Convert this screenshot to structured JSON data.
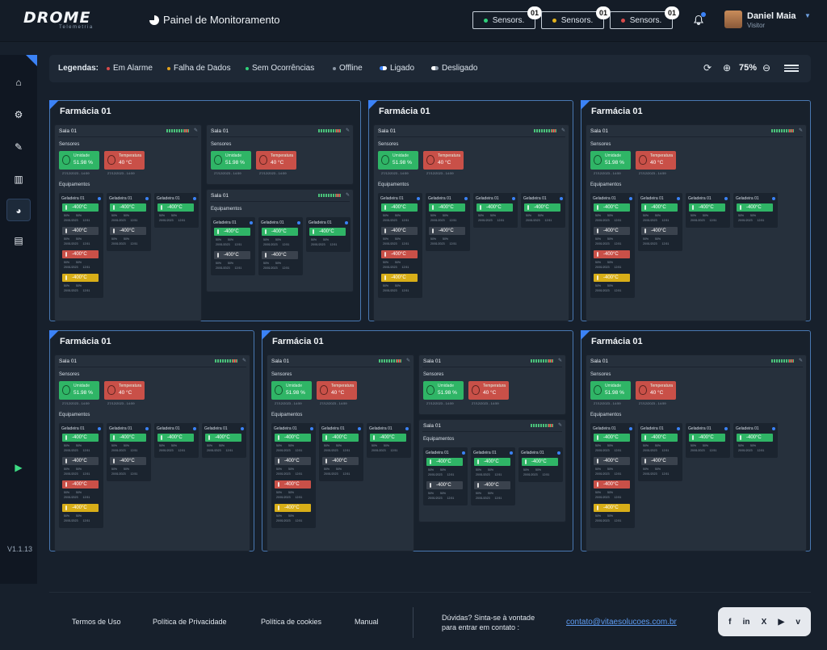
{
  "header": {
    "logo": "DROME",
    "logo_sub": "Telemetria",
    "title": "Painel de Monitoramento",
    "sensor_buttons": [
      {
        "label": "Sensors.",
        "count": "01",
        "color": "#2fd27a"
      },
      {
        "label": "Sensors.",
        "count": "01",
        "color": "#e3b21c"
      },
      {
        "label": "Sensors.",
        "count": "01",
        "color": "#d84a4a"
      }
    ],
    "user": {
      "name": "Daniel Maia",
      "role": "Visitor"
    }
  },
  "sidebar": {
    "items": [
      "home-icon",
      "robot-icon",
      "checklist-icon",
      "bar-chart-icon",
      "pie-chart-icon",
      "document-icon"
    ],
    "stores": [
      "apple-icon",
      "google-play-icon"
    ],
    "version": "V1.1.13"
  },
  "legend": {
    "title": "Legendas:",
    "items": [
      {
        "label": "Em Alarme",
        "color": "#d84a4a",
        "kind": "dot"
      },
      {
        "label": "Falha de Dados",
        "color": "#e3a21c",
        "kind": "dot"
      },
      {
        "label": "Sem Ocorrências",
        "color": "#2fd27a",
        "kind": "dot"
      },
      {
        "label": "Offline",
        "color": "#8b97a5",
        "kind": "dot"
      },
      {
        "label": "Ligado",
        "color": "#ffffff",
        "kind": "toggle"
      },
      {
        "label": "Desligado",
        "color": "#ffffff",
        "kind": "toggle"
      }
    ],
    "zoom": "75%"
  },
  "labels": {
    "pharmacy": "Farmácia 01",
    "room": "Sala 01",
    "sensors": "Sensores",
    "equipment": "Equipamentos",
    "fridge": "Geladeira 01",
    "humidity_label": "Umidade",
    "humidity_value": "51.98 %",
    "temperature_label": "Temperatura",
    "temperature_value": "40 °C",
    "sensor_time": "27/12/2023 - 14:59",
    "temp_reading": "-400°C",
    "pct": "50%",
    "meta_date": "20/01/2023",
    "meta_time": "12:51"
  },
  "footer": {
    "links": [
      "Termos de Uso",
      "Política de Privacidade",
      "Política de cookies",
      "Manual"
    ],
    "help_line1": "Dúvidas? Sinta-se à vontade",
    "help_line2": "para entrar em contato :",
    "email": "contato@vitaesolucoes.com.br",
    "social": [
      "f",
      "in",
      "X",
      "▶",
      "v"
    ]
  }
}
